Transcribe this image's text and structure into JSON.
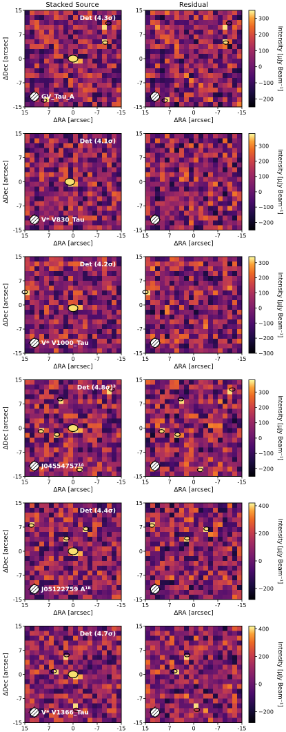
{
  "column_titles": [
    "Stacked Source",
    "Residual"
  ],
  "colors": {
    "colormap": "inferno",
    "contour": "#000000",
    "label_text": "#ffffff"
  },
  "chart_data": [
    {
      "type": "heatmap",
      "title": "Det (4.3σ)",
      "source_label": "GV_Tau_A",
      "xlabel": "ΔRA [arcsec]",
      "ylabel": "ΔDec [arcsec]",
      "xlim": [
        15,
        -15
      ],
      "ylim": [
        -15,
        15
      ],
      "xticks": [
        "15",
        "7",
        "0",
        "-7",
        "-15"
      ],
      "yticks": [
        "15",
        "7",
        "0",
        "-7",
        "-15"
      ],
      "colorbar": {
        "label": "Intensity [μJy Beam⁻¹]",
        "range": [
          -250,
          350
        ],
        "ticks": [
          300,
          200,
          100,
          0,
          -100,
          -200
        ]
      },
      "detections": [
        {
          "x": 0,
          "y": 0
        },
        {
          "x": -10,
          "y": 5
        },
        {
          "x": -11,
          "y": 11
        },
        {
          "x": 9,
          "y": -13
        }
      ],
      "noise_seed": 11
    },
    {
      "type": "heatmap",
      "title": "Det (4.1σ)",
      "source_label": "V* V830_Tau",
      "xlabel": "ΔRA [arcsec]",
      "ylabel": "ΔDec [arcsec]",
      "xlim": [
        15,
        -15
      ],
      "ylim": [
        -15,
        15
      ],
      "xticks": [
        "15",
        "7",
        "0",
        "-7",
        "-15"
      ],
      "yticks": [
        "15",
        "7",
        "0",
        "-7",
        "-15"
      ],
      "colorbar": {
        "label": "Intensity [μJy Beam⁻¹]",
        "range": [
          -250,
          380
        ],
        "ticks": [
          300,
          200,
          100,
          0,
          -100,
          -200
        ]
      },
      "detections": [
        {
          "x": 1,
          "y": 0
        }
      ],
      "noise_seed": 23
    },
    {
      "type": "heatmap",
      "title": "Det (4.2σ)",
      "source_label": "V* V1000_Tau",
      "xlabel": "ΔRA [arcsec]",
      "ylabel": "ΔDec [arcsec]",
      "xlim": [
        15,
        -15
      ],
      "ylim": [
        -15,
        15
      ],
      "xticks": [
        "15",
        "7",
        "0",
        "-7",
        "-15"
      ],
      "yticks": [
        "15",
        "7",
        "0",
        "-7",
        "-15"
      ],
      "colorbar": {
        "label": "Intensity [μJy Beam⁻¹]",
        "range": [
          -300,
          340
        ],
        "ticks": [
          300,
          200,
          100,
          0,
          -100,
          -200,
          -300
        ]
      },
      "detections": [
        {
          "x": 0,
          "y": -1
        },
        {
          "x": 15,
          "y": 4
        }
      ],
      "noise_seed": 37
    },
    {
      "type": "heatmap",
      "title": "Det (4.8σ)³",
      "source_label": "J04554757¹ᴬ",
      "xlabel": "ΔRA [arcsec]",
      "ylabel": "ΔDec [arcsec]",
      "xlim": [
        15,
        -15
      ],
      "ylim": [
        -15,
        15
      ],
      "xticks": [
        "15",
        "7",
        "0",
        "-7",
        "-15"
      ],
      "yticks": [
        "15",
        "7",
        "0",
        "-7",
        "-15"
      ],
      "colorbar": {
        "label": "Intensity [μJy Beam⁻¹]",
        "range": [
          -250,
          380
        ],
        "ticks": [
          300,
          200,
          100,
          0,
          -100,
          -200
        ]
      },
      "detections": [
        {
          "x": 0,
          "y": 0
        },
        {
          "x": 5,
          "y": -2
        },
        {
          "x": 4,
          "y": 9
        },
        {
          "x": -12,
          "y": 12
        },
        {
          "x": -2,
          "y": -13
        },
        {
          "x": 10,
          "y": -1
        }
      ],
      "noise_seed": 53
    },
    {
      "type": "heatmap",
      "title": "Det (4.4σ)",
      "source_label": "J05122759 A¹ᴮ",
      "xlabel": "ΔRA [arcsec]",
      "ylabel": "ΔDec [arcsec]",
      "xlim": [
        15,
        -15
      ],
      "ylim": [
        -15,
        15
      ],
      "xticks": [
        "15",
        "7",
        "0",
        "-7",
        "-15"
      ],
      "yticks": [
        "15",
        "7",
        "0",
        "-7",
        "-15"
      ],
      "colorbar": {
        "label": "Intensity [μJy Beam⁻¹]",
        "range": [
          -280,
          420
        ],
        "ticks": [
          400,
          200,
          0,
          -200
        ]
      },
      "detections": [
        {
          "x": 0,
          "y": 0
        },
        {
          "x": -4,
          "y": 7
        },
        {
          "x": 13,
          "y": 8
        },
        {
          "x": 2,
          "y": 4
        }
      ],
      "noise_seed": 71
    },
    {
      "type": "heatmap",
      "title": "Det (4.7σ)",
      "source_label": "V* V1366_Tau",
      "xlabel": "ΔRA [arcsec]",
      "ylabel": "ΔDec [arcsec]",
      "xlim": [
        15,
        -15
      ],
      "ylim": [
        -15,
        15
      ],
      "xticks": [
        "15",
        "7",
        "0",
        "-7",
        "-15"
      ],
      "yticks": [
        "15",
        "7",
        "0",
        "-7",
        "-15"
      ],
      "colorbar": {
        "label": "Intensity [μJy Beam⁻¹]",
        "range": [
          -280,
          420
        ],
        "ticks": [
          400,
          200,
          0,
          -200
        ]
      },
      "detections": [
        {
          "x": 0,
          "y": 0
        },
        {
          "x": 2,
          "y": 6
        },
        {
          "x": 6,
          "y": 1
        },
        {
          "x": -1,
          "y": -11
        }
      ],
      "noise_seed": 89
    }
  ]
}
